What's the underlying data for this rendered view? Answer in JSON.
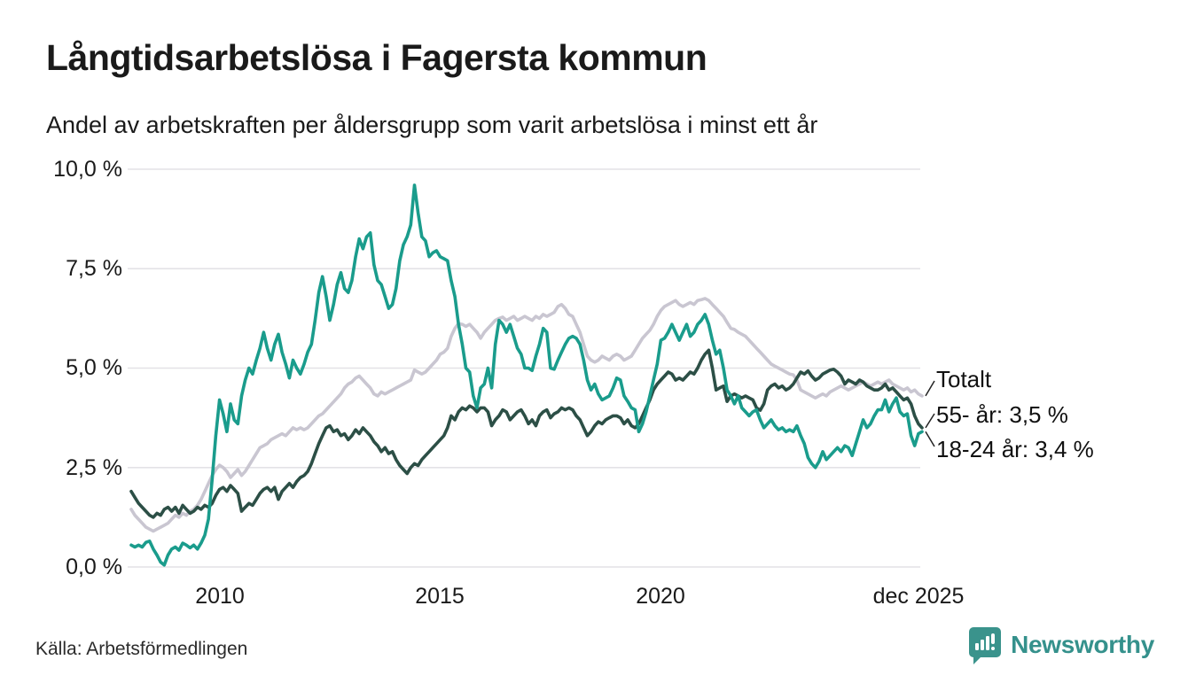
{
  "title": "Långtidsarbetslösa i Fagersta kommun",
  "subtitle": "Andel av arbetskraften per åldersgrupp som varit arbetslösa i minst ett år",
  "source": "Källa: Arbetsförmedlingen",
  "brand": {
    "name": "Newsworthy",
    "color": "#35918c",
    "icon": "bar-chart-speech-bubble-icon"
  },
  "colors": {
    "background": "#ffffff",
    "grid": "#e3e2e6",
    "text": "#1a1a1a",
    "leader": "#222222",
    "series_totalt": "#c9c6d1",
    "series_55": "#2c4f46",
    "series_18_24": "#1a9c8c"
  },
  "chart_data": {
    "type": "line",
    "title": "Långtidsarbetslösa i Fagersta kommun",
    "subtitle": "Andel av arbetskraften per åldersgrupp som varit arbetslösa i minst ett år",
    "unit": "% av arbetskraften",
    "frequency": "monthly",
    "x_start": "2008-01",
    "x_end": "2025-12",
    "ylim": [
      0,
      10
    ],
    "grid": true,
    "legend_position": "end-of-line annotations (right)",
    "y_ticks": [
      {
        "value": 0,
        "label": "0,0 %"
      },
      {
        "value": 2.5,
        "label": "2,5 %"
      },
      {
        "value": 5,
        "label": "5,0 %"
      },
      {
        "value": 7.5,
        "label": "7,5 %"
      },
      {
        "value": 10,
        "label": "10,0 %"
      }
    ],
    "x_ticks": [
      {
        "month_index": 24,
        "label": "2010"
      },
      {
        "month_index": 84,
        "label": "2015"
      },
      {
        "month_index": 144,
        "label": "2020"
      },
      {
        "month_index": 215,
        "label": "dec 2025"
      }
    ],
    "series": [
      {
        "name": "Totalt",
        "end_label": "Totalt",
        "end_value": 4.3,
        "color": "#c9c6d1",
        "values": [
          1.45,
          1.3,
          1.2,
          1.1,
          1.0,
          0.95,
          0.9,
          0.95,
          1.0,
          1.05,
          1.1,
          1.2,
          1.3,
          1.25,
          1.35,
          1.3,
          1.4,
          1.45,
          1.55,
          1.7,
          1.9,
          2.1,
          2.3,
          2.45,
          2.56,
          2.5,
          2.4,
          2.25,
          2.35,
          2.45,
          2.3,
          2.4,
          2.55,
          2.7,
          2.85,
          3.0,
          3.05,
          3.1,
          3.2,
          3.25,
          3.3,
          3.35,
          3.3,
          3.4,
          3.5,
          3.45,
          3.5,
          3.45,
          3.5,
          3.6,
          3.7,
          3.8,
          3.85,
          3.95,
          4.05,
          4.15,
          4.25,
          4.35,
          4.5,
          4.6,
          4.65,
          4.75,
          4.8,
          4.7,
          4.6,
          4.5,
          4.35,
          4.3,
          4.4,
          4.35,
          4.4,
          4.45,
          4.5,
          4.55,
          4.6,
          4.65,
          4.7,
          4.95,
          4.9,
          4.85,
          4.9,
          5.0,
          5.1,
          5.2,
          5.35,
          5.4,
          5.5,
          5.8,
          6.0,
          6.12,
          6.1,
          6.05,
          6.1,
          6.0,
          5.9,
          5.75,
          5.9,
          6.0,
          6.1,
          6.2,
          6.25,
          6.28,
          6.2,
          6.25,
          6.3,
          6.2,
          6.25,
          6.3,
          6.25,
          6.2,
          6.3,
          6.25,
          6.35,
          6.3,
          6.35,
          6.4,
          6.55,
          6.6,
          6.5,
          6.35,
          6.3,
          6.1,
          5.9,
          5.6,
          5.3,
          5.2,
          5.15,
          5.2,
          5.3,
          5.25,
          5.2,
          5.3,
          5.35,
          5.3,
          5.2,
          5.25,
          5.3,
          5.45,
          5.6,
          5.75,
          5.85,
          5.95,
          6.1,
          6.3,
          6.45,
          6.55,
          6.6,
          6.65,
          6.7,
          6.6,
          6.55,
          6.6,
          6.65,
          6.6,
          6.7,
          6.72,
          6.75,
          6.7,
          6.6,
          6.5,
          6.4,
          6.3,
          6.15,
          6.0,
          5.97,
          5.9,
          5.85,
          5.8,
          5.7,
          5.6,
          5.5,
          5.4,
          5.3,
          5.2,
          5.1,
          5.05,
          5.0,
          4.95,
          4.9,
          4.85,
          4.83,
          4.7,
          4.45,
          4.4,
          4.35,
          4.3,
          4.25,
          4.3,
          4.35,
          4.3,
          4.4,
          4.45,
          4.5,
          4.55,
          4.5,
          4.45,
          4.5,
          4.55,
          4.6,
          4.65,
          4.6,
          4.55,
          4.6,
          4.65,
          4.6,
          4.65,
          4.7,
          4.6,
          4.55,
          4.5,
          4.45,
          4.5,
          4.4,
          4.45,
          4.35,
          4.3
        ]
      },
      {
        "name": "55- år",
        "end_label": "55- år: 3,5 %",
        "end_value": 3.5,
        "color": "#2c4f46",
        "values": [
          1.9,
          1.75,
          1.6,
          1.5,
          1.4,
          1.3,
          1.25,
          1.35,
          1.3,
          1.45,
          1.5,
          1.4,
          1.5,
          1.35,
          1.55,
          1.45,
          1.35,
          1.4,
          1.5,
          1.45,
          1.55,
          1.5,
          1.6,
          1.8,
          1.95,
          2.0,
          1.9,
          2.05,
          1.95,
          1.85,
          1.4,
          1.5,
          1.6,
          1.55,
          1.7,
          1.85,
          1.95,
          2.0,
          1.9,
          2.0,
          1.7,
          1.9,
          2.0,
          2.1,
          2.0,
          2.15,
          2.25,
          2.3,
          2.4,
          2.6,
          2.85,
          3.1,
          3.3,
          3.5,
          3.55,
          3.4,
          3.45,
          3.3,
          3.35,
          3.2,
          3.3,
          3.45,
          3.35,
          3.5,
          3.4,
          3.3,
          3.15,
          3.05,
          2.9,
          3.0,
          2.85,
          2.9,
          2.7,
          2.55,
          2.45,
          2.35,
          2.5,
          2.6,
          2.55,
          2.7,
          2.8,
          2.9,
          3.0,
          3.1,
          3.2,
          3.3,
          3.5,
          3.8,
          3.7,
          3.9,
          4.0,
          3.95,
          4.05,
          4.0,
          3.9,
          4.0,
          4.0,
          3.9,
          3.55,
          3.7,
          3.8,
          3.95,
          3.9,
          3.7,
          3.8,
          3.9,
          3.95,
          3.8,
          3.6,
          3.7,
          3.55,
          3.8,
          3.9,
          3.95,
          3.75,
          3.85,
          3.9,
          4.0,
          3.95,
          4.0,
          3.95,
          3.8,
          3.7,
          3.5,
          3.3,
          3.4,
          3.55,
          3.65,
          3.6,
          3.7,
          3.75,
          3.8,
          3.8,
          3.75,
          3.6,
          3.7,
          3.55,
          3.5,
          3.6,
          3.8,
          4.0,
          4.2,
          4.45,
          4.6,
          4.7,
          4.8,
          4.9,
          4.85,
          4.7,
          4.75,
          4.7,
          4.8,
          4.9,
          4.85,
          5.0,
          5.2,
          5.35,
          5.45,
          5.0,
          4.45,
          4.5,
          4.55,
          4.16,
          4.3,
          4.35,
          4.3,
          4.25,
          4.3,
          4.25,
          4.2,
          4.0,
          3.94,
          4.1,
          4.45,
          4.55,
          4.6,
          4.5,
          4.55,
          4.45,
          4.5,
          4.6,
          4.75,
          4.9,
          4.85,
          4.93,
          4.8,
          4.7,
          4.75,
          4.85,
          4.9,
          4.95,
          4.97,
          4.9,
          4.8,
          4.6,
          4.7,
          4.65,
          4.6,
          4.7,
          4.65,
          4.55,
          4.5,
          4.45,
          4.45,
          4.5,
          4.6,
          4.45,
          4.5,
          4.4,
          4.3,
          4.2,
          4.25,
          4.1,
          3.8,
          3.6,
          3.5
        ]
      },
      {
        "name": "18-24 år",
        "end_label": "18-24 år: 3,4 %",
        "end_value": 3.4,
        "color": "#1a9c8c",
        "values": [
          0.55,
          0.5,
          0.55,
          0.5,
          0.62,
          0.65,
          0.45,
          0.3,
          0.12,
          0.05,
          0.3,
          0.45,
          0.5,
          0.42,
          0.6,
          0.55,
          0.48,
          0.55,
          0.45,
          0.6,
          0.8,
          1.2,
          2.2,
          3.3,
          4.2,
          3.85,
          3.4,
          4.1,
          3.7,
          3.6,
          4.3,
          4.7,
          5.0,
          4.85,
          5.2,
          5.5,
          5.9,
          5.5,
          5.2,
          5.6,
          5.85,
          5.4,
          5.1,
          4.75,
          5.2,
          5.0,
          4.85,
          5.1,
          5.4,
          5.6,
          6.2,
          6.9,
          7.3,
          6.8,
          6.2,
          6.6,
          7.1,
          7.4,
          7.0,
          6.9,
          7.2,
          7.8,
          8.25,
          8.0,
          8.3,
          8.4,
          7.6,
          7.2,
          7.1,
          6.8,
          6.5,
          6.6,
          7.0,
          7.7,
          8.1,
          8.3,
          8.6,
          9.6,
          8.9,
          8.3,
          8.2,
          7.8,
          7.9,
          7.95,
          7.8,
          7.75,
          7.7,
          7.2,
          6.8,
          6.1,
          5.6,
          5.0,
          4.9,
          4.3,
          4.0,
          4.5,
          4.6,
          5.0,
          4.5,
          5.6,
          6.2,
          6.1,
          5.9,
          6.1,
          5.8,
          5.5,
          5.35,
          5.0,
          5.0,
          4.94,
          5.3,
          5.6,
          6.0,
          5.9,
          5.0,
          4.97,
          5.2,
          5.4,
          5.6,
          5.75,
          5.8,
          5.75,
          5.6,
          5.2,
          4.7,
          4.45,
          4.6,
          4.35,
          4.2,
          4.25,
          4.3,
          4.5,
          4.75,
          4.7,
          4.3,
          4.16,
          4.0,
          3.95,
          3.4,
          3.6,
          3.9,
          4.3,
          4.7,
          5.1,
          5.7,
          5.75,
          5.9,
          6.1,
          5.9,
          5.7,
          5.9,
          6.1,
          5.8,
          5.9,
          6.1,
          6.2,
          6.35,
          6.1,
          5.7,
          5.35,
          5.45,
          5.0,
          4.45,
          4.3,
          4.1,
          4.3,
          4.0,
          3.9,
          3.8,
          3.9,
          3.95,
          3.7,
          3.5,
          3.6,
          3.7,
          3.55,
          3.45,
          3.5,
          3.4,
          3.45,
          3.4,
          3.55,
          3.3,
          3.1,
          2.75,
          2.6,
          2.5,
          2.65,
          2.9,
          2.7,
          2.8,
          2.9,
          3.0,
          2.9,
          3.05,
          3.0,
          2.8,
          3.1,
          3.4,
          3.7,
          3.5,
          3.6,
          3.8,
          3.95,
          3.95,
          4.2,
          3.9,
          4.1,
          4.25,
          3.9,
          3.8,
          3.85,
          3.3,
          3.05,
          3.35,
          3.4
        ]
      }
    ]
  }
}
